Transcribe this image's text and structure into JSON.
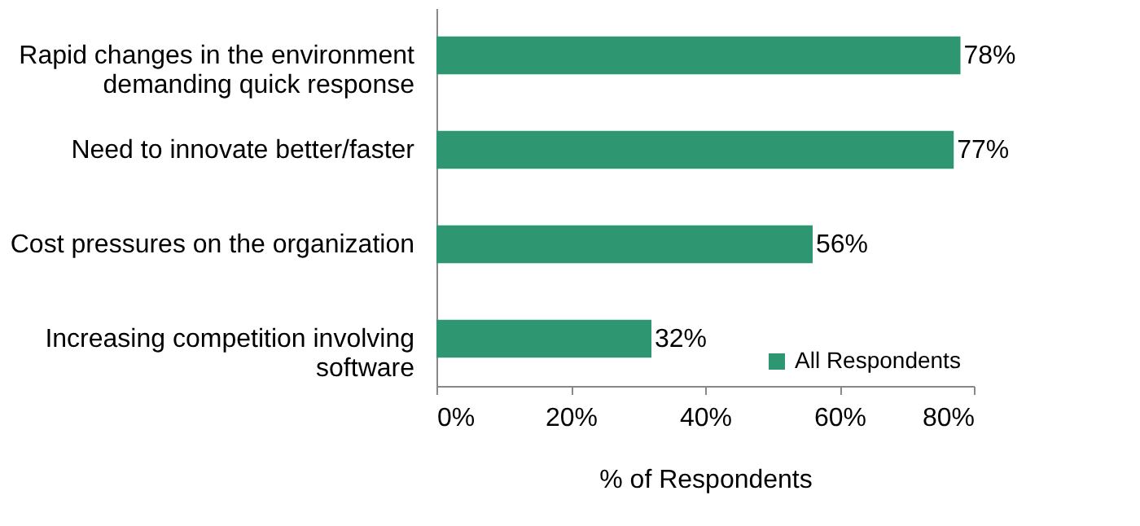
{
  "chart_data": {
    "type": "bar",
    "orientation": "horizontal",
    "xlabel": "% of Respondents",
    "legend": "bottom right",
    "grid": false,
    "categories": [
      "Rapid changes in the environment demanding quick response",
      "Need to innovate better/faster",
      "Cost pressures on the organization",
      "Increasing competition involving software"
    ],
    "series": [
      {
        "name": "All Respondents",
        "color": "#2e9670",
        "values": [
          78,
          77,
          56,
          32
        ],
        "value_labels": [
          "78%",
          "77%",
          "56%",
          "32%"
        ]
      }
    ],
    "xlim": [
      0,
      80
    ],
    "xticks": [
      {
        "value": 0,
        "label": "0%"
      },
      {
        "value": 20,
        "label": "20%"
      },
      {
        "value": 40,
        "label": "40%"
      },
      {
        "value": 60,
        "label": "60%"
      },
      {
        "value": 80,
        "label": "80%"
      }
    ]
  }
}
